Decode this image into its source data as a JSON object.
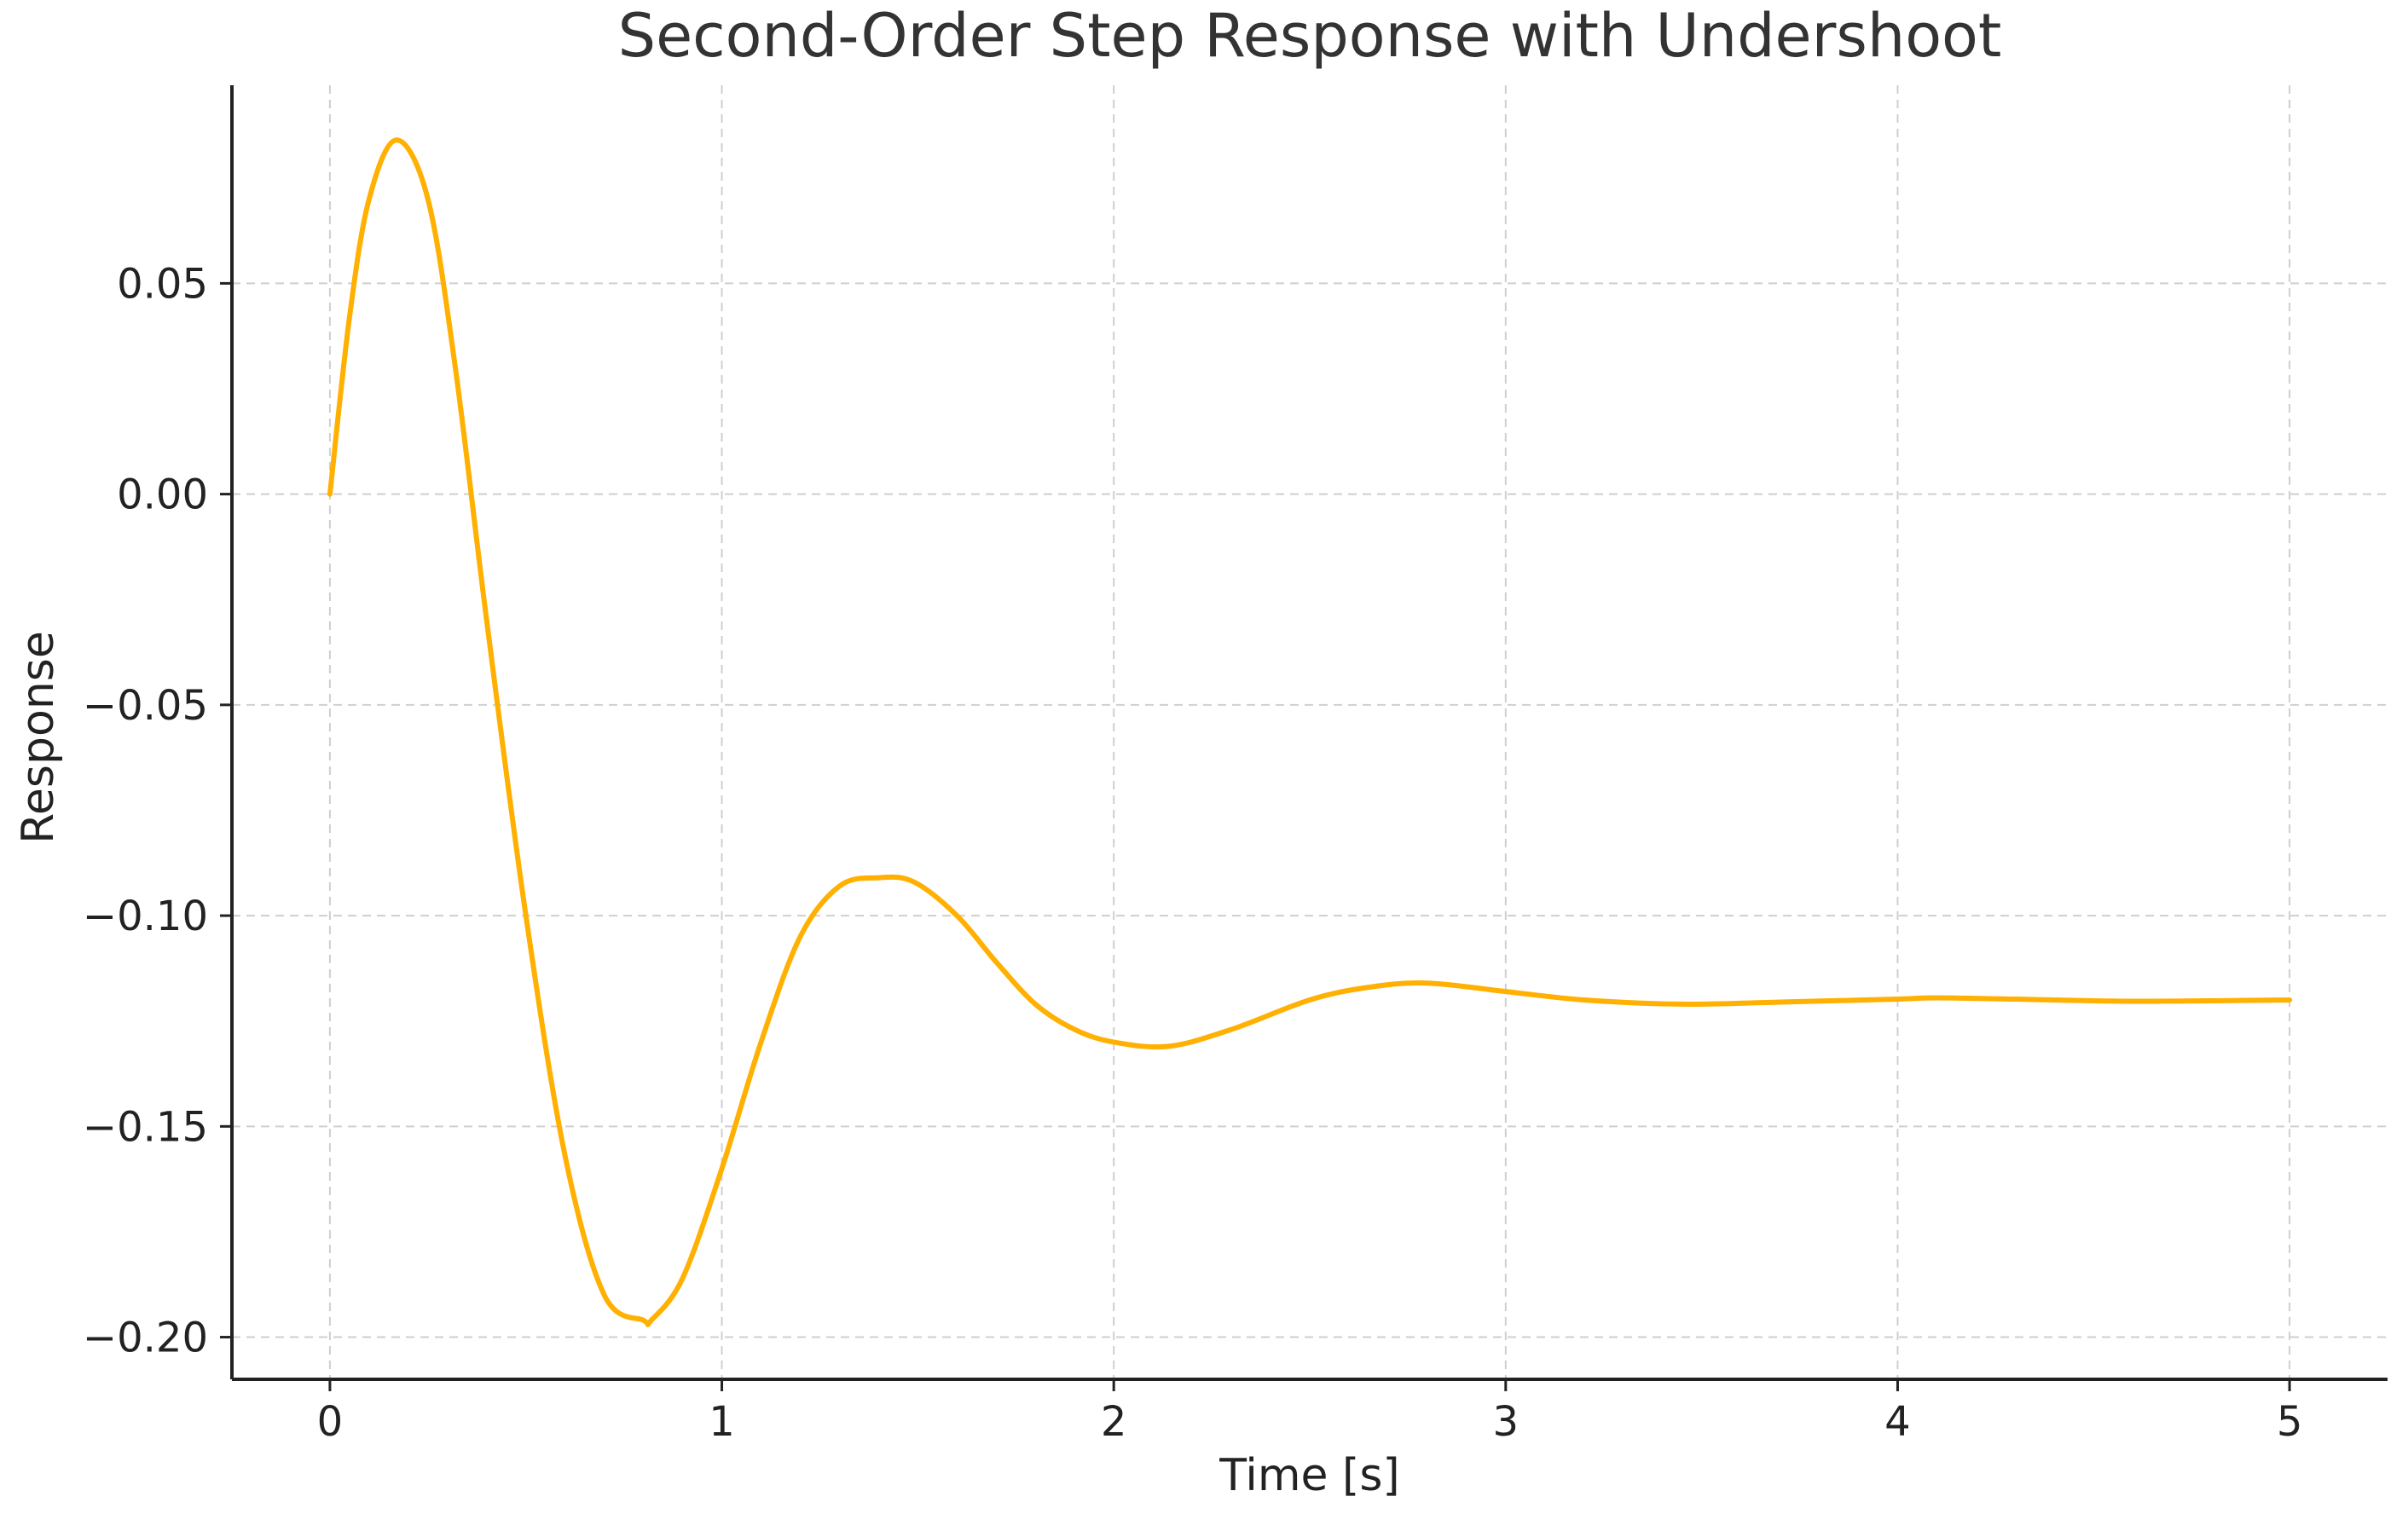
{
  "chart_data": {
    "type": "line",
    "title": "Second-Order Step Response with Undershoot",
    "xlabel": "Time [s]",
    "ylabel": "Response",
    "xlim": [
      -0.25,
      5.25
    ],
    "ylim": [
      -0.21,
      0.097
    ],
    "x_ticks": [
      0,
      1,
      2,
      3,
      4,
      5
    ],
    "x_tick_labels": [
      "0",
      "1",
      "2",
      "3",
      "4",
      "5"
    ],
    "y_ticks": [
      0.05,
      0.0,
      -0.05,
      -0.1,
      -0.15,
      -0.2
    ],
    "y_tick_labels": [
      "0.05",
      "0.00",
      "−0.05",
      "−0.10",
      "−0.15",
      "−0.20"
    ],
    "grid": true,
    "legend": "none",
    "series": [
      {
        "color": "#ffb000",
        "x": [
          0,
          0.05,
          0.1,
          0.17,
          0.25,
          0.32,
          0.4,
          0.5,
          0.6,
          0.7,
          0.8,
          0.82,
          0.9,
          1.0,
          1.1,
          1.2,
          1.3,
          1.4,
          1.49,
          1.6,
          1.7,
          1.8,
          1.9,
          2.0,
          2.14,
          2.3,
          2.5,
          2.65,
          2.8,
          3.0,
          3.2,
          3.45,
          3.7,
          4.0,
          4.1,
          4.3,
          4.6,
          5.0
        ],
        "y": [
          0.0,
          0.042,
          0.07,
          0.084,
          0.07,
          0.03,
          -0.03,
          -0.1,
          -0.157,
          -0.19,
          -0.196,
          -0.196,
          -0.186,
          -0.16,
          -0.13,
          -0.105,
          -0.093,
          -0.091,
          -0.092,
          -0.1,
          -0.111,
          -0.121,
          -0.127,
          -0.13,
          -0.131,
          -0.127,
          -0.12,
          -0.117,
          -0.116,
          -0.118,
          -0.12,
          -0.121,
          -0.1205,
          -0.1198,
          -0.1195,
          -0.1198,
          -0.1203,
          -0.12
        ]
      }
    ]
  }
}
